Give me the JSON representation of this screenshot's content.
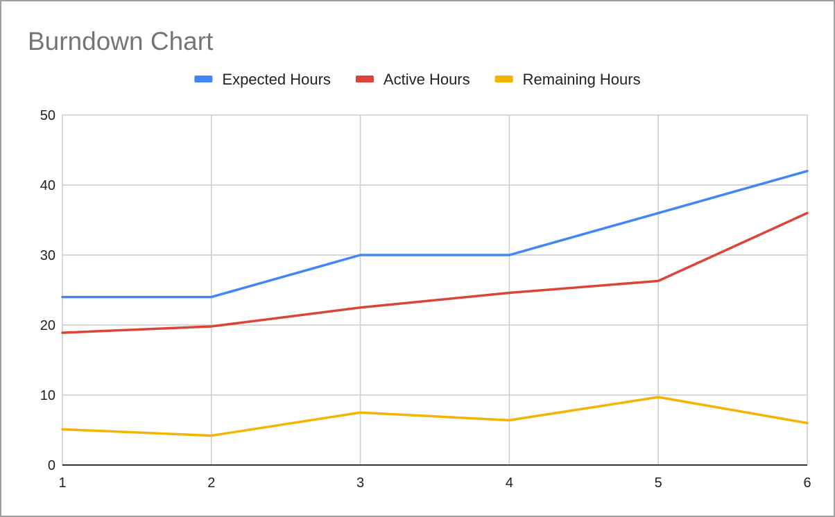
{
  "chart_data": {
    "type": "line",
    "title": "Burndown Chart",
    "xlabel": "",
    "ylabel": "",
    "x": [
      1,
      2,
      3,
      4,
      5,
      6
    ],
    "x_ticks": [
      "1",
      "2",
      "3",
      "4",
      "5",
      "6"
    ],
    "y_ticks": [
      "0",
      "10",
      "20",
      "30",
      "40",
      "50"
    ],
    "xlim": [
      1,
      6
    ],
    "ylim": [
      0,
      50
    ],
    "grid": true,
    "legend_position": "top",
    "series": [
      {
        "name": "Expected Hours",
        "color": "#4285f4",
        "values": [
          24,
          24,
          30,
          30,
          36,
          42
        ]
      },
      {
        "name": "Active Hours",
        "color": "#db4437",
        "values": [
          18.9,
          19.8,
          22.5,
          24.6,
          26.3,
          36
        ]
      },
      {
        "name": "Remaining Hours",
        "color": "#f4b400",
        "values": [
          5.1,
          4.2,
          7.5,
          6.4,
          9.7,
          6
        ]
      }
    ]
  }
}
